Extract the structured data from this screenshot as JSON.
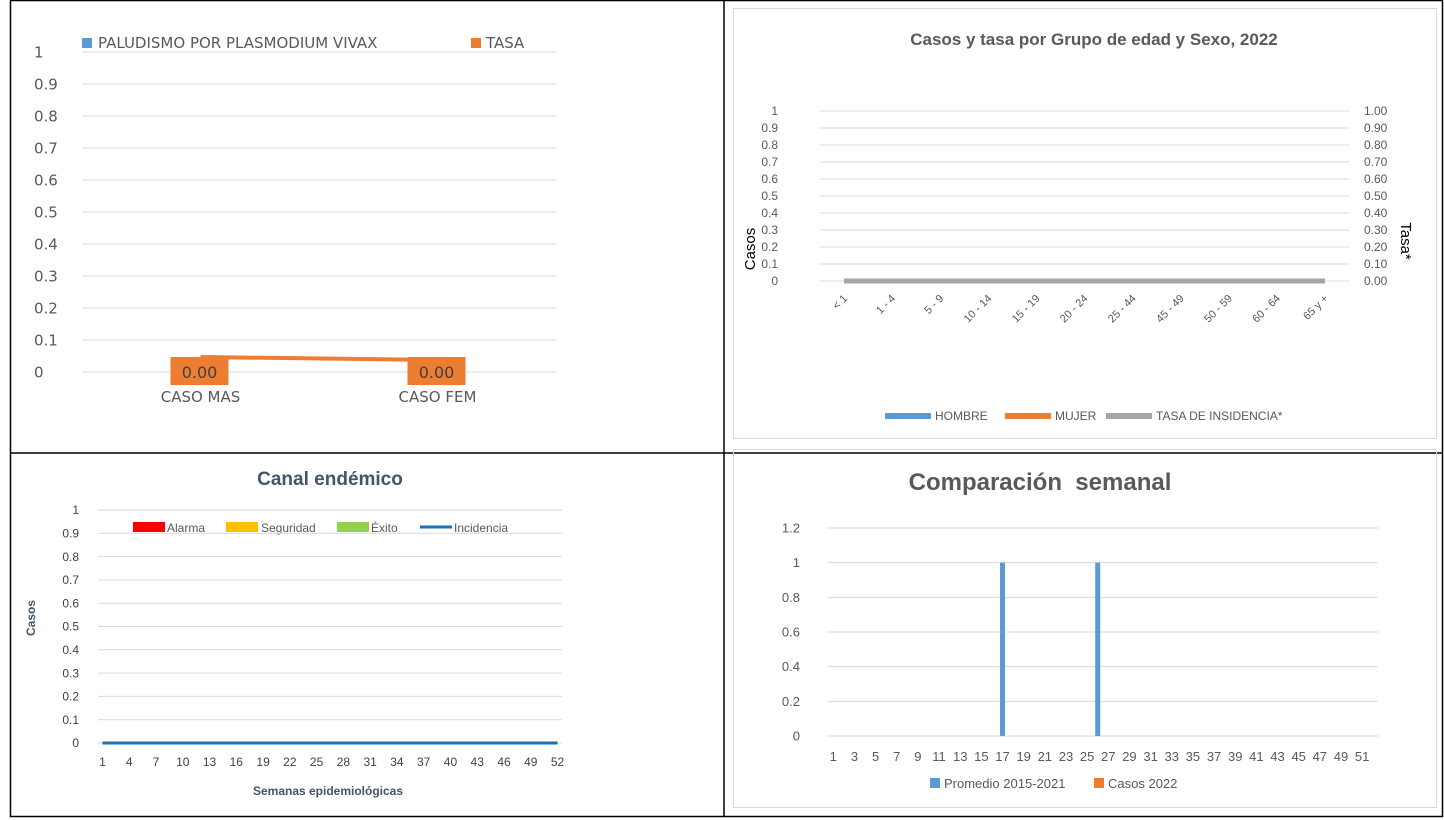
{
  "chart_data": [
    {
      "type": "bar",
      "legend": [
        "PALUDISMO POR PLASMODIUM VIVAX",
        "TASA"
      ],
      "legend_position": "top",
      "categories": [
        "CASO MAS",
        "CASO FEM"
      ],
      "series": [
        {
          "name": "PALUDISMO POR PLASMODIUM VIVAX",
          "type": "bar",
          "values": [
            0,
            0
          ]
        },
        {
          "name": "TASA",
          "type": "line",
          "values": [
            0.0,
            0.0
          ]
        }
      ],
      "data_labels": [
        "0.00",
        "0.00"
      ],
      "ylim": [
        0,
        1
      ],
      "yticks": [
        "0",
        "0.1",
        "0.2",
        "0.3",
        "0.4",
        "0.5",
        "0.6",
        "0.7",
        "0.8",
        "0.9",
        "1"
      ],
      "grid": true,
      "colors": {
        "bar": "#5b9bd5",
        "line": "#ed7d31"
      }
    },
    {
      "type": "bar",
      "title": "Casos y tasa por Grupo de edad y Sexo, 2022",
      "ylabel": "Casos",
      "y2label": "Tasa*",
      "categories": [
        "< 1",
        "1 - 4",
        "5 - 9",
        "10 - 14",
        "15 - 19",
        "20 - 24",
        "25 - 44",
        "45 - 49",
        "50 - 59",
        "60 - 64",
        "65 y +"
      ],
      "series": [
        {
          "name": "HOMBRE",
          "type": "bar",
          "values": [
            0,
            0,
            0,
            0,
            0,
            0,
            0,
            0,
            0,
            0,
            0
          ]
        },
        {
          "name": "MUJER",
          "type": "bar",
          "values": [
            0,
            0,
            0,
            0,
            0,
            0,
            0,
            0,
            0,
            0,
            0
          ]
        },
        {
          "name": "TASA DE INSIDENCIA*",
          "type": "line",
          "values": [
            0,
            0,
            0,
            0,
            0,
            0,
            0,
            0,
            0,
            0,
            0
          ]
        }
      ],
      "ylim": [
        0,
        1
      ],
      "yticks": [
        "0",
        "0.1",
        "0.2",
        "0.3",
        "0.4",
        "0.5",
        "0.6",
        "0.7",
        "0.8",
        "0.9",
        "1"
      ],
      "y2ticks": [
        "0.00",
        "0.10",
        "0.20",
        "0.30",
        "0.40",
        "0.50",
        "0.60",
        "0.70",
        "0.80",
        "0.90",
        "1.00"
      ],
      "legend_position": "bottom",
      "grid": true,
      "colors": {
        "HOMBRE": "#5b9bd5",
        "MUJER": "#ed7d31",
        "TASA DE INSIDENCIA*": "#a5a5a5"
      }
    },
    {
      "type": "area",
      "title": "Canal endémico",
      "xlabel": "Semanas epidemiológicas",
      "ylabel": "Casos",
      "xticks": [
        "1",
        "4",
        "7",
        "10",
        "13",
        "16",
        "19",
        "22",
        "25",
        "28",
        "31",
        "34",
        "37",
        "40",
        "43",
        "46",
        "49",
        "52"
      ],
      "series": [
        {
          "name": "Alarma",
          "type": "area",
          "values": []
        },
        {
          "name": "Seguridad",
          "type": "area",
          "values": []
        },
        {
          "name": "Éxito",
          "type": "area",
          "values": []
        },
        {
          "name": "Incidencia",
          "type": "line",
          "values": [
            0,
            0
          ]
        }
      ],
      "ylim": [
        0,
        1
      ],
      "yticks": [
        "0",
        "0.1",
        "0.2",
        "0.3",
        "0.4",
        "0.5",
        "0.6",
        "0.7",
        "0.8",
        "0.9",
        "1"
      ],
      "legend_position": "top",
      "grid": true,
      "colors": {
        "Alarma": "#ff0000",
        "Seguridad": "#ffc000",
        "Éxito": "#92d050",
        "Incidencia": "#1f6fb2"
      }
    },
    {
      "type": "bar",
      "title": "Comparación  semanal",
      "x": [
        1,
        2,
        3,
        4,
        5,
        6,
        7,
        8,
        9,
        10,
        11,
        12,
        13,
        14,
        15,
        16,
        17,
        18,
        19,
        20,
        21,
        22,
        23,
        24,
        25,
        26,
        27,
        28,
        29,
        30,
        31,
        32,
        33,
        34,
        35,
        36,
        37,
        38,
        39,
        40,
        41,
        42,
        43,
        44,
        45,
        46,
        47,
        48,
        49,
        50,
        51,
        52
      ],
      "xticks": [
        "1",
        "3",
        "5",
        "7",
        "9",
        "11",
        "13",
        "15",
        "17",
        "19",
        "21",
        "23",
        "25",
        "27",
        "29",
        "31",
        "33",
        "35",
        "37",
        "39",
        "41",
        "43",
        "45",
        "47",
        "49",
        "51"
      ],
      "series": [
        {
          "name": "Promedio 2015-2021",
          "points": [
            {
              "x": 17,
              "y": 1
            },
            {
              "x": 26,
              "y": 1
            }
          ]
        },
        {
          "name": "Casos 2022",
          "points": []
        }
      ],
      "ylim": [
        0,
        1.2
      ],
      "yticks": [
        "0",
        "0.2",
        "0.4",
        "0.6",
        "0.8",
        "1",
        "1.2"
      ],
      "legend_position": "bottom",
      "grid": true,
      "colors": {
        "Promedio 2015-2021": "#5b9bd5",
        "Casos 2022": "#ed7d31"
      }
    }
  ]
}
